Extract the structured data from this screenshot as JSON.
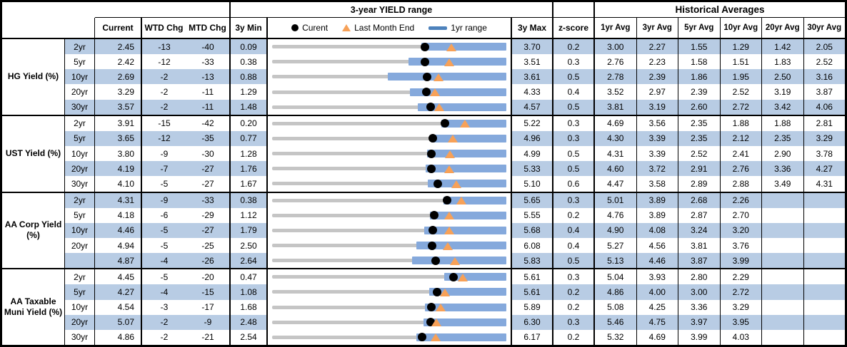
{
  "header": {
    "col_current": "Current",
    "col_wtd": "WTD Chg",
    "col_mtd": "MTD Chg",
    "col_3ymin": "3y Min",
    "col_3ymax": "3y Max",
    "col_zscore": "z-score",
    "chart_title": "3-year YIELD range",
    "hist_title": "Historical Averages",
    "avg_cols": [
      "1yr Avg",
      "3yr Avg",
      "5yr Avg",
      "10yr Avg",
      "20yr Avg",
      "30yr Avg"
    ],
    "legend": {
      "current": "Curent",
      "last_month_end": "Last Month End",
      "yr1_range": "1yr range"
    }
  },
  "colors": {
    "row_band": "#b8cce4",
    "range_bar": "#85a9dc",
    "legend_swatch": "#4d82bc",
    "triangle": "#f7a158",
    "track_gray": "#c5c5c5",
    "border": "#000000"
  },
  "chart_data": {
    "type": "range-dot-table",
    "title": "3-year YIELD range",
    "x_mapping": "each row scaled from 3y Min (left) to 3y Max (right); dot = current, triangle = last month end, blue bar = 1yr range",
    "groups": [
      {
        "label": "HG Yield (%)",
        "rows": [
          {
            "tenor": "2yr",
            "current": "2.45",
            "wtd": "-13",
            "mtd": "-40",
            "min": "0.09",
            "max": "3.70",
            "z": "0.2",
            "avgs": [
              "3.00",
              "2.27",
              "1.55",
              "1.29",
              "1.42",
              "2.05"
            ],
            "chart": {
              "min": 0.09,
              "max": 3.7,
              "current": 2.45,
              "lme": 2.85,
              "r1lo": 2.39,
              "r1hi": 3.7
            }
          },
          {
            "tenor": "5yr",
            "current": "2.42",
            "wtd": "-12",
            "mtd": "-33",
            "min": "0.38",
            "max": "3.51",
            "z": "0.3",
            "avgs": [
              "2.76",
              "2.23",
              "1.58",
              "1.51",
              "1.83",
              "2.52"
            ],
            "chart": {
              "min": 0.38,
              "max": 3.51,
              "current": 2.42,
              "lme": 2.75,
              "r1lo": 2.2,
              "r1hi": 3.51
            }
          },
          {
            "tenor": "10yr",
            "current": "2.69",
            "wtd": "-2",
            "mtd": "-13",
            "min": "0.88",
            "max": "3.61",
            "z": "0.5",
            "avgs": [
              "2.78",
              "2.39",
              "1.86",
              "1.95",
              "2.50",
              "3.16"
            ],
            "chart": {
              "min": 0.88,
              "max": 3.61,
              "current": 2.69,
              "lme": 2.82,
              "r1lo": 2.23,
              "r1hi": 3.61
            }
          },
          {
            "tenor": "20yr",
            "current": "3.29",
            "wtd": "-2",
            "mtd": "-11",
            "min": "1.29",
            "max": "4.33",
            "z": "0.4",
            "avgs": [
              "3.52",
              "2.97",
              "2.39",
              "2.52",
              "3.19",
              "3.87"
            ],
            "chart": {
              "min": 1.29,
              "max": 4.33,
              "current": 3.29,
              "lme": 3.4,
              "r1lo": 3.08,
              "r1hi": 4.33
            }
          },
          {
            "tenor": "30yr",
            "current": "3.57",
            "wtd": "-2",
            "mtd": "-11",
            "min": "1.48",
            "max": "4.57",
            "z": "0.5",
            "avgs": [
              "3.81",
              "3.19",
              "2.60",
              "2.72",
              "3.42",
              "4.06"
            ],
            "chart": {
              "min": 1.48,
              "max": 4.57,
              "current": 3.57,
              "lme": 3.68,
              "r1lo": 3.4,
              "r1hi": 4.57
            }
          }
        ]
      },
      {
        "label": "UST Yield (%)",
        "rows": [
          {
            "tenor": "2yr",
            "current": "3.91",
            "wtd": "-15",
            "mtd": "-42",
            "min": "0.20",
            "max": "5.22",
            "z": "0.3",
            "avgs": [
              "4.69",
              "3.56",
              "2.35",
              "1.88",
              "1.88",
              "2.81"
            ],
            "chart": {
              "min": 0.2,
              "max": 5.22,
              "current": 3.91,
              "lme": 4.33,
              "r1lo": 3.82,
              "r1hi": 5.22
            }
          },
          {
            "tenor": "5yr",
            "current": "3.65",
            "wtd": "-12",
            "mtd": "-35",
            "min": "0.77",
            "max": "4.96",
            "z": "0.3",
            "avgs": [
              "4.30",
              "3.39",
              "2.35",
              "2.12",
              "2.35",
              "3.29"
            ],
            "chart": {
              "min": 0.77,
              "max": 4.96,
              "current": 3.65,
              "lme": 4.0,
              "r1lo": 3.62,
              "r1hi": 4.96
            }
          },
          {
            "tenor": "10yr",
            "current": "3.80",
            "wtd": "-9",
            "mtd": "-30",
            "min": "1.28",
            "max": "4.99",
            "z": "0.5",
            "avgs": [
              "4.31",
              "3.39",
              "2.52",
              "2.41",
              "2.90",
              "3.78"
            ],
            "chart": {
              "min": 1.28,
              "max": 4.99,
              "current": 3.8,
              "lme": 4.1,
              "r1lo": 3.73,
              "r1hi": 4.99
            }
          },
          {
            "tenor": "20yr",
            "current": "4.19",
            "wtd": "-7",
            "mtd": "-27",
            "min": "1.76",
            "max": "5.33",
            "z": "0.5",
            "avgs": [
              "4.60",
              "3.72",
              "2.91",
              "2.76",
              "3.36",
              "4.27"
            ],
            "chart": {
              "min": 1.76,
              "max": 5.33,
              "current": 4.19,
              "lme": 4.46,
              "r1lo": 4.1,
              "r1hi": 5.33
            }
          },
          {
            "tenor": "30yr",
            "current": "4.10",
            "wtd": "-5",
            "mtd": "-27",
            "min": "1.67",
            "max": "5.10",
            "z": "0.6",
            "avgs": [
              "4.47",
              "3.58",
              "2.89",
              "2.88",
              "3.49",
              "4.31"
            ],
            "chart": {
              "min": 1.67,
              "max": 5.1,
              "current": 4.1,
              "lme": 4.37,
              "r1lo": 3.95,
              "r1hi": 5.1
            }
          }
        ]
      },
      {
        "label": "AA Corp Yield (%)",
        "rows": [
          {
            "tenor": "2yr",
            "current": "4.31",
            "wtd": "-9",
            "mtd": "-33",
            "min": "0.38",
            "max": "5.65",
            "z": "0.3",
            "avgs": [
              "5.01",
              "3.89",
              "2.68",
              "2.26",
              "",
              ""
            ],
            "chart": {
              "min": 0.38,
              "max": 5.65,
              "current": 4.31,
              "lme": 4.64,
              "r1lo": 4.24,
              "r1hi": 5.65
            }
          },
          {
            "tenor": "5yr",
            "current": "4.18",
            "wtd": "-6",
            "mtd": "-29",
            "min": "1.12",
            "max": "5.55",
            "z": "0.2",
            "avgs": [
              "4.76",
              "3.89",
              "2.87",
              "2.70",
              "",
              ""
            ],
            "chart": {
              "min": 1.12,
              "max": 5.55,
              "current": 4.18,
              "lme": 4.47,
              "r1lo": 4.11,
              "r1hi": 5.55
            }
          },
          {
            "tenor": "10yr",
            "current": "4.46",
            "wtd": "-5",
            "mtd": "-27",
            "min": "1.79",
            "max": "5.68",
            "z": "0.4",
            "avgs": [
              "4.90",
              "4.08",
              "3.24",
              "3.20",
              "",
              ""
            ],
            "chart": {
              "min": 1.79,
              "max": 5.68,
              "current": 4.46,
              "lme": 4.73,
              "r1lo": 4.32,
              "r1hi": 5.68
            }
          },
          {
            "tenor": "20yr",
            "current": "4.94",
            "wtd": "-5",
            "mtd": "-25",
            "min": "2.50",
            "max": "6.08",
            "z": "0.4",
            "avgs": [
              "5.27",
              "4.56",
              "3.81",
              "3.76",
              "",
              ""
            ],
            "chart": {
              "min": 2.5,
              "max": 6.08,
              "current": 4.94,
              "lme": 5.19,
              "r1lo": 4.7,
              "r1hi": 6.08
            }
          },
          {
            "tenor": "",
            "current": "4.87",
            "wtd": "-4",
            "mtd": "-26",
            "min": "2.64",
            "max": "5.83",
            "z": "0.5",
            "avgs": [
              "5.13",
              "4.46",
              "3.87",
              "3.99",
              "",
              ""
            ],
            "chart": {
              "min": 2.64,
              "max": 5.83,
              "current": 4.87,
              "lme": 5.13,
              "r1lo": 4.55,
              "r1hi": 5.83
            }
          }
        ]
      },
      {
        "label": "AA Taxable Muni Yield (%)",
        "rows": [
          {
            "tenor": "2yr",
            "current": "4.45",
            "wtd": "-5",
            "mtd": "-20",
            "min": "0.47",
            "max": "5.61",
            "z": "0.3",
            "avgs": [
              "5.04",
              "3.93",
              "2.80",
              "2.29",
              "",
              ""
            ],
            "chart": {
              "min": 0.47,
              "max": 5.61,
              "current": 4.45,
              "lme": 4.65,
              "r1lo": 4.25,
              "r1hi": 5.61
            }
          },
          {
            "tenor": "5yr",
            "current": "4.27",
            "wtd": "-4",
            "mtd": "-15",
            "min": "1.08",
            "max": "5.61",
            "z": "0.2",
            "avgs": [
              "4.86",
              "4.00",
              "3.00",
              "2.72",
              "",
              ""
            ],
            "chart": {
              "min": 1.08,
              "max": 5.61,
              "current": 4.27,
              "lme": 4.42,
              "r1lo": 4.12,
              "r1hi": 5.61
            }
          },
          {
            "tenor": "10yr",
            "current": "4.54",
            "wtd": "-3",
            "mtd": "-17",
            "min": "1.68",
            "max": "5.89",
            "z": "0.2",
            "avgs": [
              "5.08",
              "4.25",
              "3.36",
              "3.29",
              "",
              ""
            ],
            "chart": {
              "min": 1.68,
              "max": 5.89,
              "current": 4.54,
              "lme": 4.71,
              "r1lo": 4.43,
              "r1hi": 5.89
            }
          },
          {
            "tenor": "20yr",
            "current": "5.07",
            "wtd": "-2",
            "mtd": "-9",
            "min": "2.48",
            "max": "6.30",
            "z": "0.3",
            "avgs": [
              "5.46",
              "4.75",
              "3.97",
              "3.95",
              "",
              ""
            ],
            "chart": {
              "min": 2.48,
              "max": 6.3,
              "current": 5.07,
              "lme": 5.16,
              "r1lo": 4.95,
              "r1hi": 6.3
            }
          },
          {
            "tenor": "30yr",
            "current": "4.86",
            "wtd": "-2",
            "mtd": "-21",
            "min": "2.54",
            "max": "6.17",
            "z": "0.2",
            "avgs": [
              "5.32",
              "4.69",
              "3.99",
              "4.03",
              "",
              ""
            ],
            "chart": {
              "min": 2.54,
              "max": 6.17,
              "current": 4.86,
              "lme": 5.07,
              "r1lo": 4.78,
              "r1hi": 6.17
            }
          }
        ]
      }
    ]
  }
}
